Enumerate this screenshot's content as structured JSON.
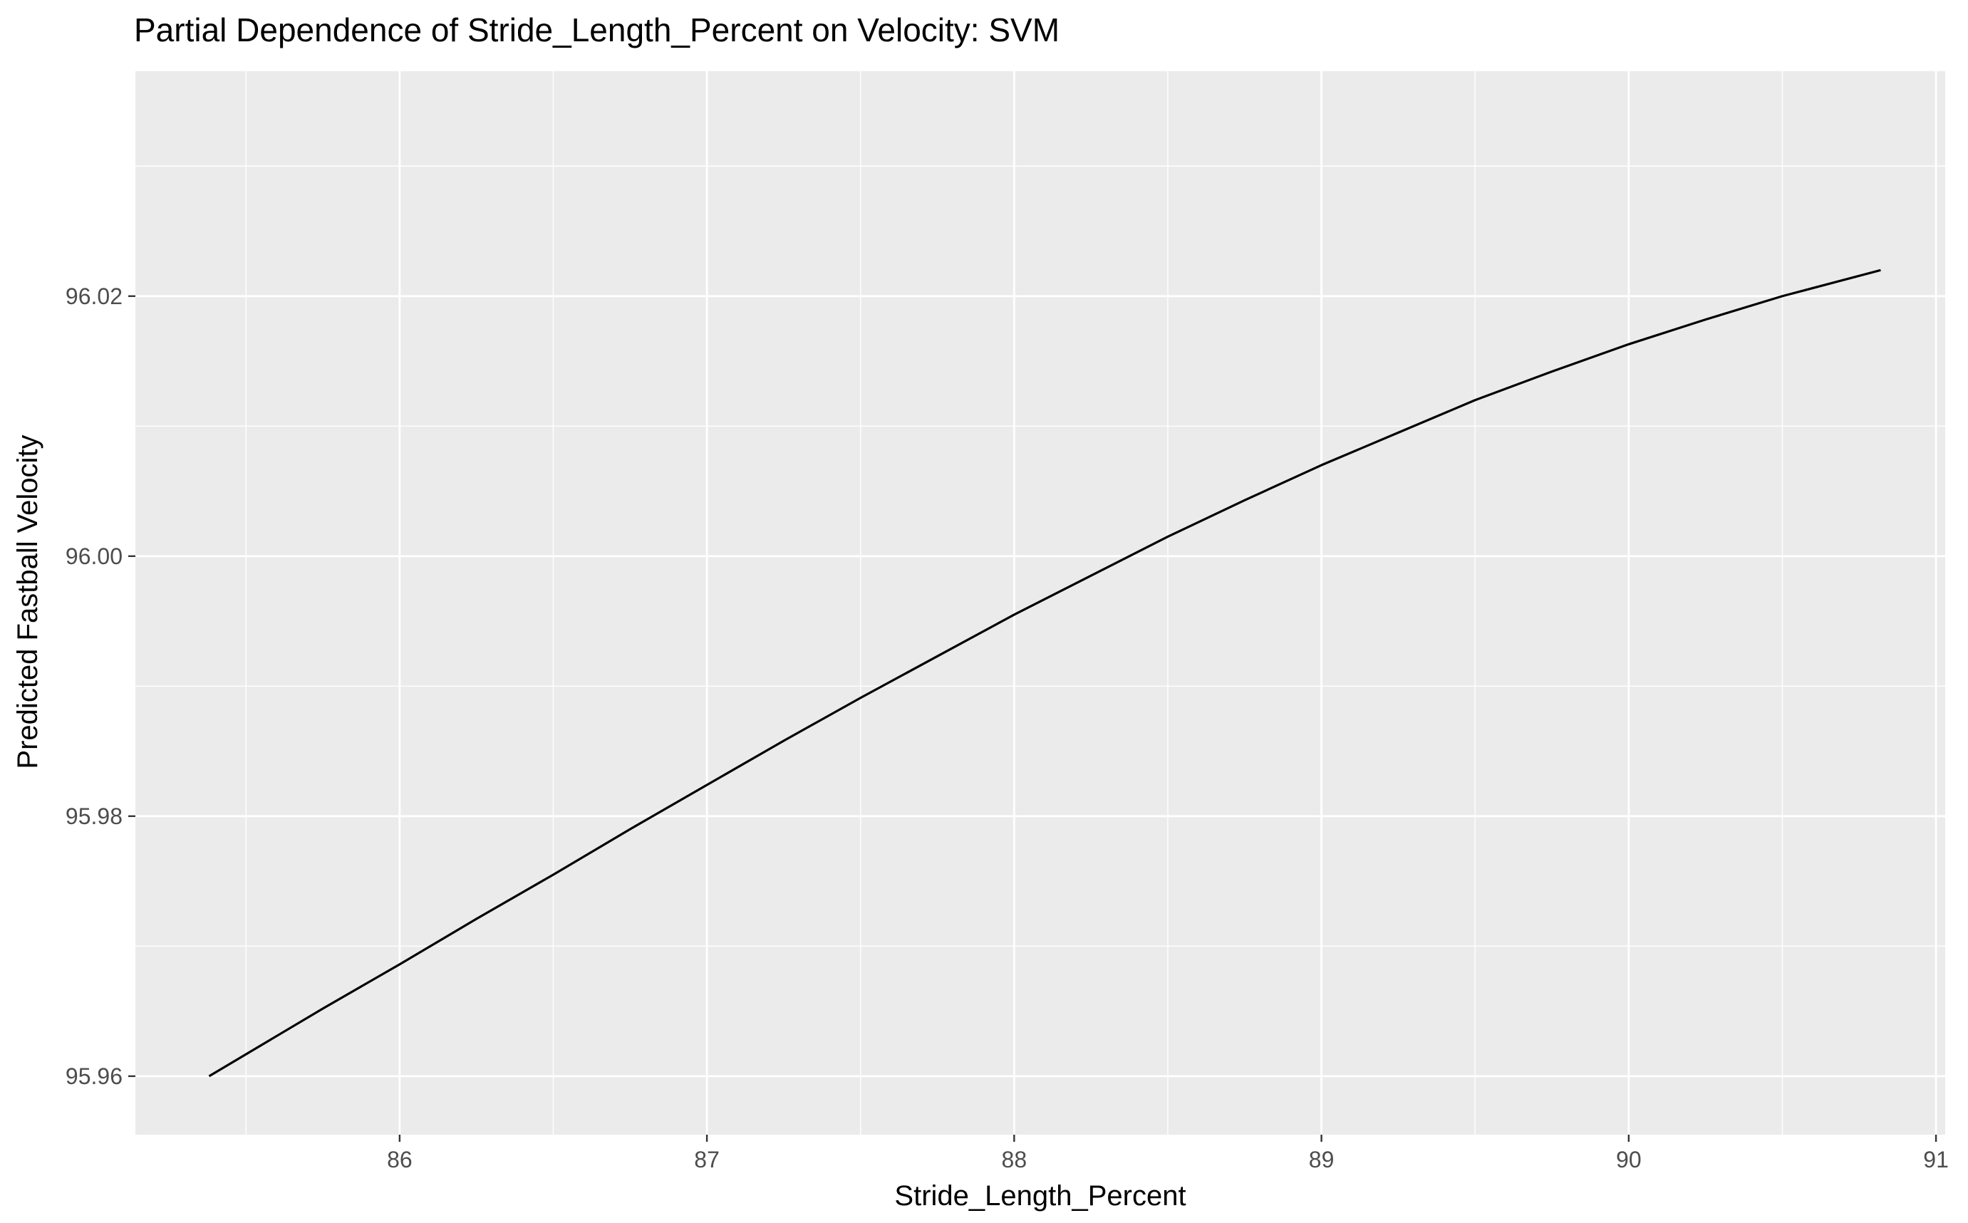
{
  "chart_data": {
    "type": "line",
    "title": "Partial Dependence of Stride_Length_Percent on Velocity: SVM",
    "xlabel": "Stride_Length_Percent",
    "ylabel": "Predicted Fastball Velocity",
    "xlim": [
      85.14,
      91.03
    ],
    "ylim": [
      95.9555,
      96.0373
    ],
    "x_ticks": [
      86,
      87,
      88,
      89,
      90,
      91
    ],
    "x_tick_labels": [
      "86",
      "87",
      "88",
      "89",
      "90",
      "91"
    ],
    "x_minor_ticks": [
      85.5,
      86.5,
      87.5,
      88.5,
      89.5,
      90.5
    ],
    "y_ticks": [
      95.96,
      95.98,
      96.0,
      96.02
    ],
    "y_tick_labels": [
      "95.96",
      "95.98",
      "96.00",
      "96.02"
    ],
    "y_minor_ticks": [
      95.97,
      95.99,
      96.01,
      96.03
    ],
    "grid": true,
    "legend": "none",
    "colors": {
      "panel_background": "#ebebeb",
      "grid_major": "#ffffff",
      "grid_minor": "#ffffff",
      "line": "#000000",
      "tick_label": "#4d4d4d",
      "tick_mark": "#333333"
    },
    "series": [
      {
        "x": [
          85.38,
          85.75,
          86.0,
          86.25,
          86.5,
          86.75,
          87.0,
          87.25,
          87.5,
          87.75,
          88.0,
          88.25,
          88.5,
          88.75,
          89.0,
          89.25,
          89.5,
          89.75,
          90.0,
          90.25,
          90.5,
          90.82
        ],
        "y": [
          95.96,
          95.9652,
          95.9686,
          95.9721,
          95.9755,
          95.979,
          95.9824,
          95.9858,
          95.9891,
          95.9923,
          95.9955,
          95.9985,
          96.0015,
          96.0043,
          96.007,
          96.0095,
          96.012,
          96.0142,
          96.0163,
          96.0182,
          96.02,
          96.022
        ]
      }
    ]
  }
}
